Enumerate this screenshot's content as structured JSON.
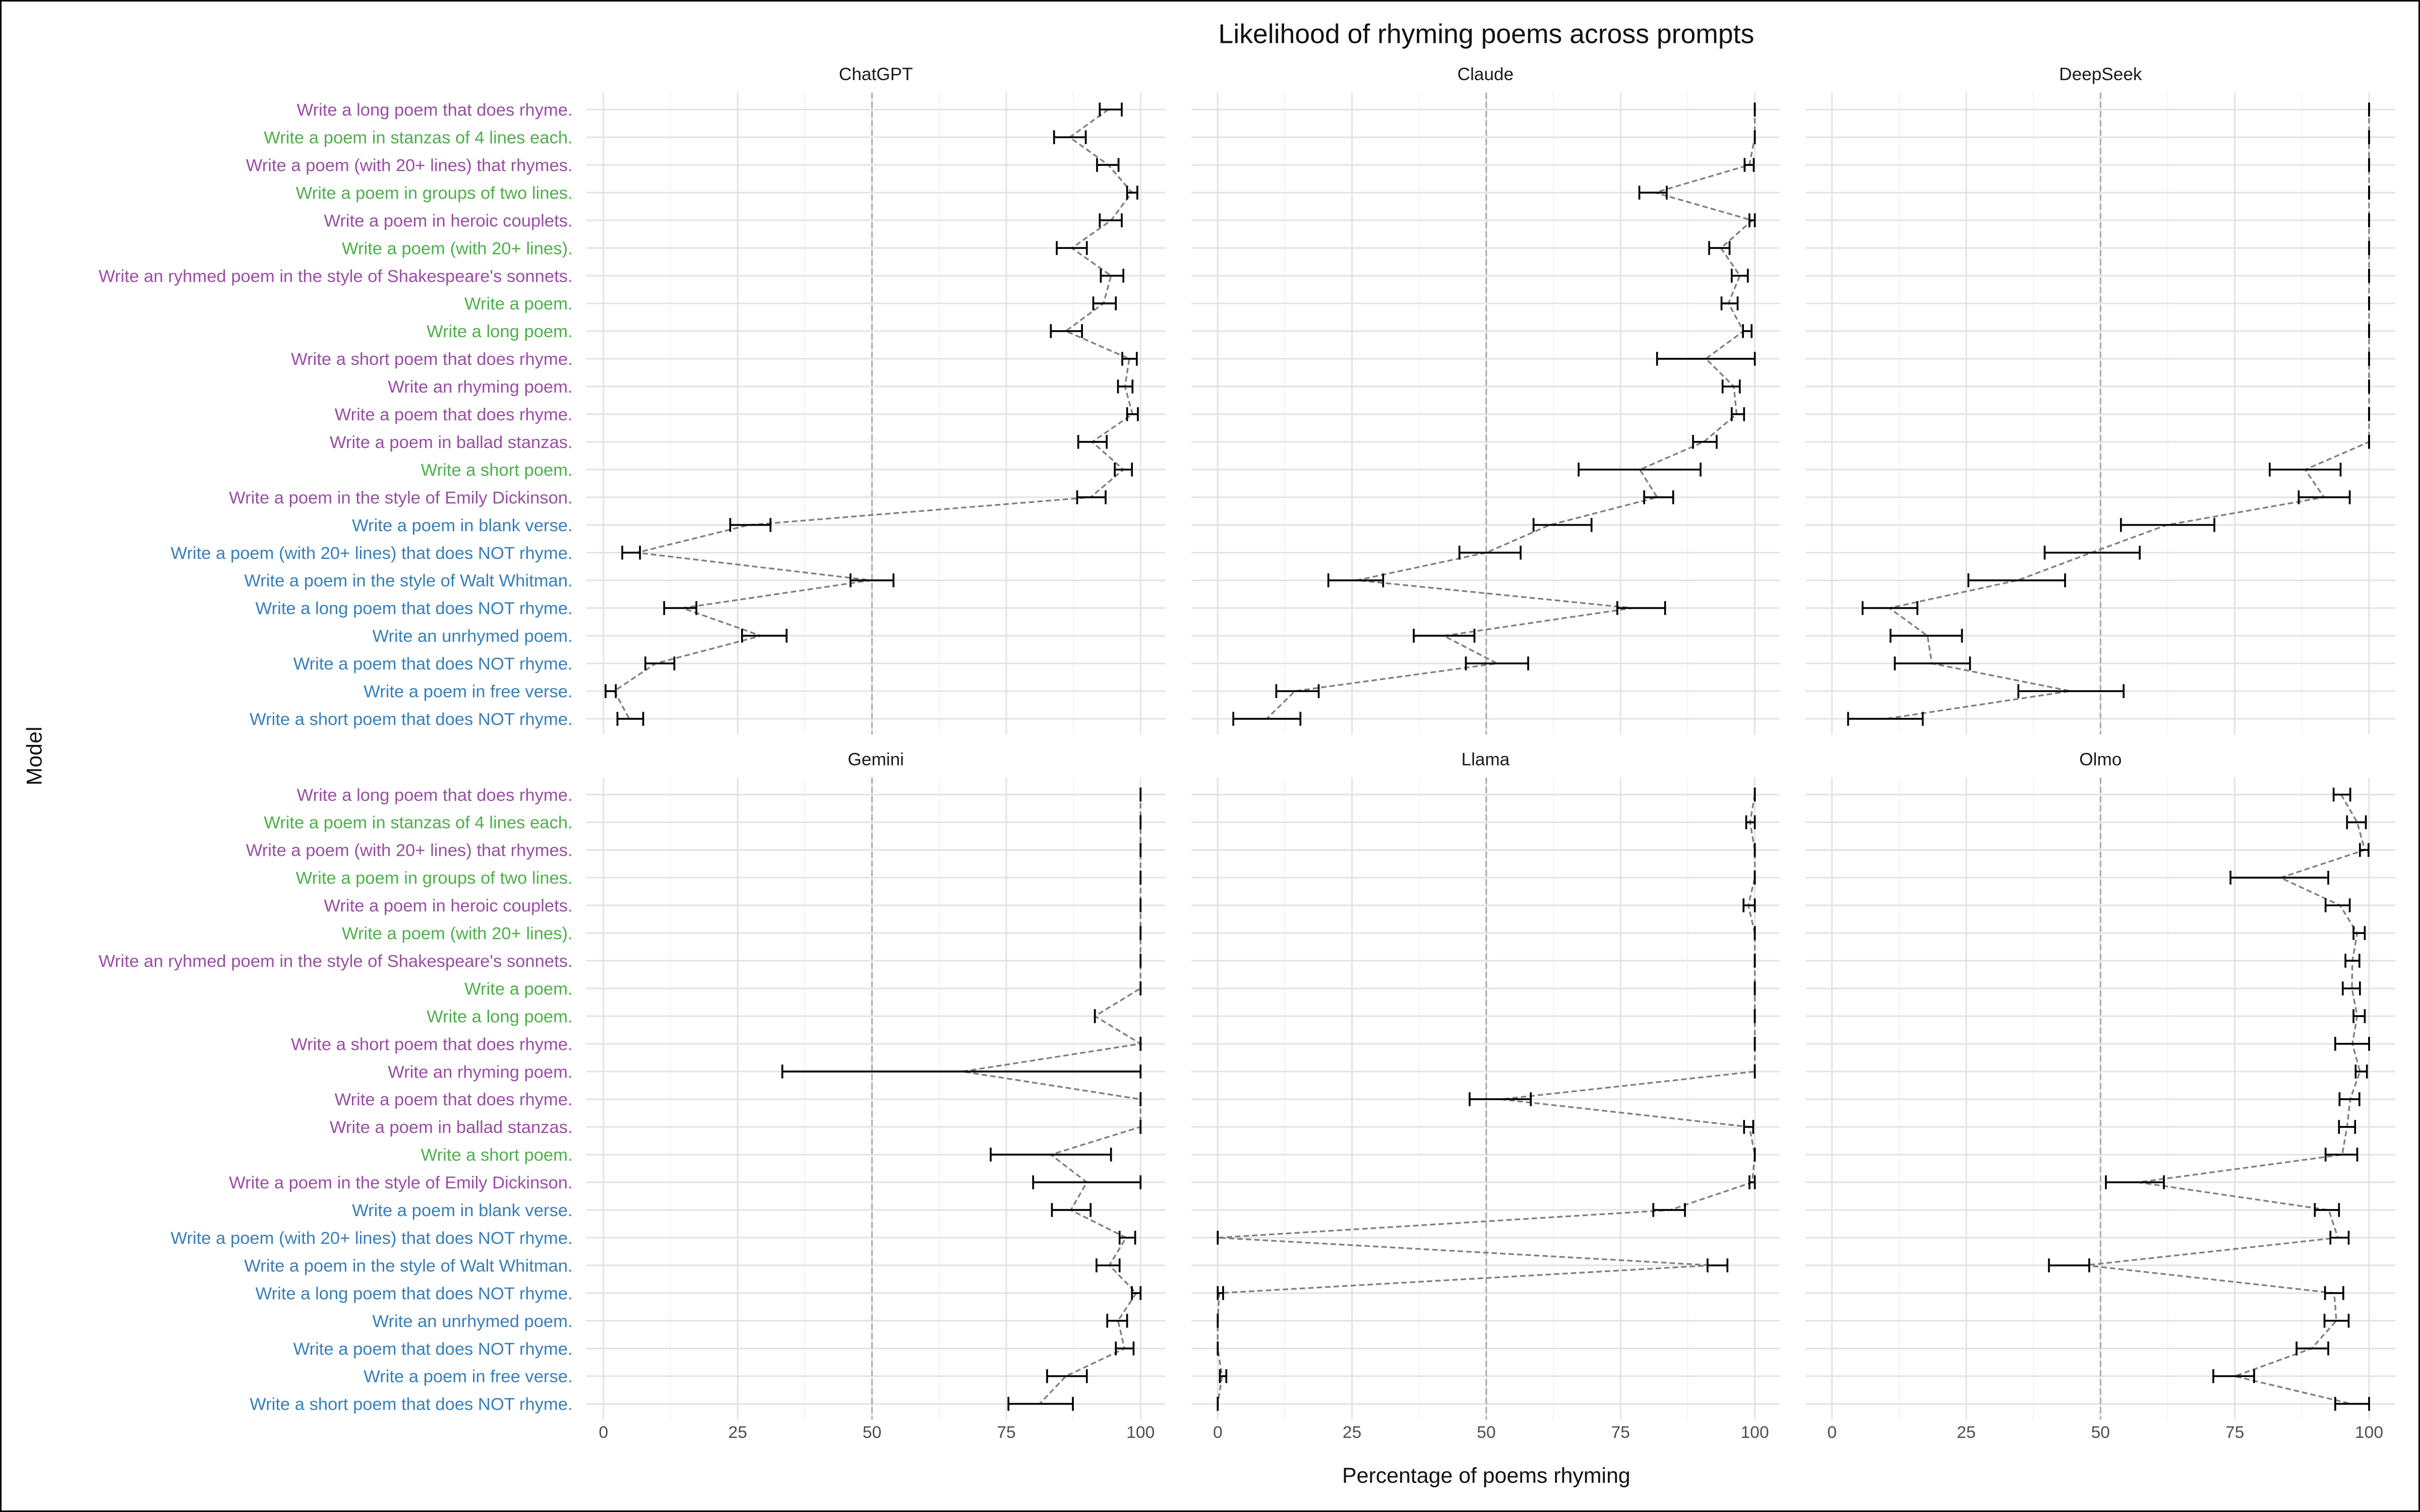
{
  "chart_data": {
    "type": "scatter",
    "variant": "point-estimate with error bars, dashed connecting line, faceted by model",
    "title": "Likelihood of rhyming poems across prompts",
    "xlabel": "Percentage of poems rhyming",
    "ylabel": "Model",
    "xlim": [
      0,
      100
    ],
    "xticks": [
      "0",
      "25",
      "50",
      "75",
      "100"
    ],
    "reference_line_x": 50,
    "grid": true,
    "prompt_colors": {
      "rhyme": "#984EA3",
      "form": "#4DAF4A",
      "no_rhyme": "#377EB8"
    },
    "prompts": [
      {
        "label": "Write a long poem that does rhyme.",
        "group": "rhyme"
      },
      {
        "label": "Write a poem in stanzas of 4 lines each.",
        "group": "form"
      },
      {
        "label": "Write a poem (with 20+ lines) that rhymes.",
        "group": "rhyme"
      },
      {
        "label": "Write a poem in groups of two lines.",
        "group": "form"
      },
      {
        "label": "Write a poem in heroic couplets.",
        "group": "rhyme"
      },
      {
        "label": "Write a poem (with 20+ lines).",
        "group": "form"
      },
      {
        "label": "Write an ryhmed poem in the style of Shakespeare's sonnets.",
        "group": "rhyme"
      },
      {
        "label": "Write a poem.",
        "group": "form"
      },
      {
        "label": "Write a long poem.",
        "group": "form"
      },
      {
        "label": "Write a short poem that does rhyme.",
        "group": "rhyme"
      },
      {
        "label": "Write an rhyming poem.",
        "group": "rhyme"
      },
      {
        "label": "Write a poem that does rhyme.",
        "group": "rhyme"
      },
      {
        "label": "Write a poem in ballad stanzas.",
        "group": "rhyme"
      },
      {
        "label": "Write a short poem.",
        "group": "form"
      },
      {
        "label": "Write a poem in the style of Emily Dickinson.",
        "group": "rhyme"
      },
      {
        "label": "Write a poem in blank verse.",
        "group": "no_rhyme"
      },
      {
        "label": "Write a poem (with 20+ lines) that does NOT rhyme.",
        "group": "no_rhyme"
      },
      {
        "label": "Write a poem in the style of Walt Whitman.",
        "group": "no_rhyme"
      },
      {
        "label": "Write a long poem that does NOT rhyme.",
        "group": "no_rhyme"
      },
      {
        "label": "Write an unrhymed poem.",
        "group": "no_rhyme"
      },
      {
        "label": "Write a poem that does NOT rhyme.",
        "group": "no_rhyme"
      },
      {
        "label": "Write a poem in free verse.",
        "group": "no_rhyme"
      },
      {
        "label": "Write a short poem that does NOT rhyme.",
        "group": "no_rhyme"
      }
    ],
    "value_format": "[mean, low, high] per prompt, in prompt order",
    "panels": [
      {
        "name": "ChatGPT",
        "values": [
          [
            94,
            92.4,
            96.5
          ],
          [
            86.8,
            83.9,
            89.8
          ],
          [
            94,
            91.9,
            95.9
          ],
          [
            98.4,
            97.5,
            99.4
          ],
          [
            94.5,
            92.4,
            96.5
          ],
          [
            87.2,
            84.4,
            90
          ],
          [
            94.5,
            92.6,
            96.8
          ],
          [
            93.1,
            91.2,
            95.4
          ],
          [
            86.1,
            83.3,
            89.1
          ],
          [
            97.9,
            96.6,
            99.3
          ],
          [
            97.1,
            95.8,
            98.5
          ],
          [
            98.5,
            97.5,
            99.5
          ],
          [
            91,
            88.4,
            93.7
          ],
          [
            96.8,
            95.2,
            98.4
          ],
          [
            90.7,
            88.2,
            93.5
          ],
          [
            27,
            23.6,
            31.1
          ],
          [
            6.2,
            3.5,
            6.8
          ],
          [
            49.8,
            46,
            54
          ],
          [
            14.7,
            11.3,
            17.3
          ],
          [
            29.3,
            25.8,
            34.1
          ],
          [
            9.7,
            7.8,
            13.2
          ],
          [
            2,
            0.4,
            2.3
          ],
          [
            4.8,
            2.6,
            7.4
          ]
        ]
      },
      {
        "name": "Claude",
        "values": [
          [
            100,
            100,
            100
          ],
          [
            100,
            100,
            100
          ],
          [
            99,
            98.1,
            99.8
          ],
          [
            81.4,
            78.5,
            83.6
          ],
          [
            99.5,
            99,
            100
          ],
          [
            93.7,
            91.5,
            95.3
          ],
          [
            97.2,
            95.7,
            98.7
          ],
          [
            95.1,
            93.8,
            96.8
          ],
          [
            97.9,
            97.8,
            99.4
          ],
          [
            90.9,
            81.8,
            100
          ],
          [
            96.1,
            94,
            97.2
          ],
          [
            96.6,
            95.7,
            98
          ],
          [
            90.5,
            88.5,
            92.9
          ],
          [
            78.6,
            67.2,
            89.9
          ],
          [
            81.8,
            79.4,
            84.8
          ],
          [
            61.8,
            58.8,
            69.6
          ],
          [
            50,
            45,
            56.4
          ],
          [
            25.9,
            20.6,
            30.8
          ],
          [
            77.2,
            74.4,
            83.3
          ],
          [
            42.1,
            36.5,
            47.8
          ],
          [
            52,
            46.2,
            57.8
          ],
          [
            14.4,
            10.9,
            18.8
          ],
          [
            9.1,
            2.9,
            15.4
          ]
        ]
      },
      {
        "name": "DeepSeek",
        "values": [
          [
            100,
            100,
            100
          ],
          [
            100,
            100,
            100
          ],
          [
            100,
            100,
            100
          ],
          [
            100,
            100,
            100
          ],
          [
            100,
            100,
            100
          ],
          [
            100,
            100,
            100
          ],
          [
            100,
            100,
            100
          ],
          [
            100,
            100,
            100
          ],
          [
            100,
            100,
            100
          ],
          [
            100,
            100,
            100
          ],
          [
            100,
            100,
            100
          ],
          [
            100,
            100,
            100
          ],
          [
            100,
            100,
            100
          ],
          [
            88.1,
            81.5,
            94.7
          ],
          [
            91.6,
            86.9,
            96.4
          ],
          [
            62.3,
            53.8,
            71.2
          ],
          [
            48.3,
            39.6,
            57.3
          ],
          [
            34.6,
            25.4,
            43.4
          ],
          [
            10.7,
            5.7,
            15.9
          ],
          [
            17.8,
            10.9,
            24.2
          ],
          [
            18.6,
            11.7,
            25.7
          ],
          [
            44.4,
            34.7,
            54.3
          ],
          [
            10,
            3,
            16.9
          ]
        ]
      },
      {
        "name": "Gemini",
        "values": [
          [
            100,
            100,
            100
          ],
          [
            100,
            100,
            100
          ],
          [
            100,
            100,
            100
          ],
          [
            100,
            100,
            100
          ],
          [
            100,
            100,
            100
          ],
          [
            100,
            100,
            100
          ],
          [
            100,
            100,
            100
          ],
          [
            100,
            100,
            100
          ],
          [
            91.5,
            91.5,
            91.5
          ],
          [
            100,
            100,
            100
          ],
          [
            66.8,
            33.3,
            100
          ],
          [
            100,
            100,
            100
          ],
          [
            100,
            100,
            100
          ],
          [
            83.3,
            72.1,
            94.5
          ],
          [
            90,
            80,
            100
          ],
          [
            87,
            83.5,
            90.7
          ],
          [
            97.3,
            96.1,
            99
          ],
          [
            94.2,
            91.8,
            96.1
          ],
          [
            99.2,
            98.4,
            100
          ],
          [
            95.8,
            93.8,
            97.5
          ],
          [
            97,
            95.4,
            98.7
          ],
          [
            86.1,
            82.6,
            90
          ],
          [
            81.2,
            75.4,
            87.4
          ]
        ]
      },
      {
        "name": "Llama",
        "values": [
          [
            100,
            100,
            100
          ],
          [
            99.1,
            98.4,
            100
          ],
          [
            100,
            100,
            100
          ],
          [
            100,
            100,
            100
          ],
          [
            98.8,
            97.9,
            100
          ],
          [
            100,
            100,
            100
          ],
          [
            100,
            100,
            100
          ],
          [
            100,
            100,
            100
          ],
          [
            100,
            100,
            100
          ],
          [
            100,
            100,
            100
          ],
          [
            100,
            100,
            100
          ],
          [
            52.7,
            46.9,
            58.3
          ],
          [
            99,
            98,
            99.7
          ],
          [
            100,
            100,
            100
          ],
          [
            99.5,
            99,
            100
          ],
          [
            84.2,
            81.1,
            87
          ],
          [
            0,
            0,
            0
          ],
          [
            92,
            91.2,
            94.9
          ],
          [
            0.3,
            0,
            1
          ],
          [
            0,
            0,
            0
          ],
          [
            0,
            0,
            0
          ],
          [
            0.8,
            0.4,
            1.6
          ],
          [
            0,
            0,
            0
          ]
        ]
      },
      {
        "name": "Olmo",
        "values": [
          [
            94.8,
            93.4,
            96.5
          ],
          [
            97.8,
            95.9,
            99.4
          ],
          [
            99.2,
            98.3,
            99.9
          ],
          [
            83.5,
            74.2,
            92.4
          ],
          [
            94.6,
            91.9,
            96.4
          ],
          [
            97.8,
            97.1,
            99.2
          ],
          [
            96.9,
            95.6,
            98.2
          ],
          [
            96.8,
            95.1,
            98.3
          ],
          [
            97.8,
            97.1,
            99.2
          ],
          [
            96.9,
            93.7,
            100
          ],
          [
            98.3,
            97.5,
            99.6
          ],
          [
            96.5,
            94.5,
            98.2
          ],
          [
            95.9,
            94.4,
            97.4
          ],
          [
            95,
            91.9,
            97.8
          ],
          [
            57,
            51,
            61.8
          ],
          [
            92.5,
            89.9,
            94.4
          ],
          [
            94.2,
            92.8,
            96.2
          ],
          [
            47.2,
            40.4,
            47.9
          ],
          [
            93.5,
            91.8,
            95.2
          ],
          [
            93.9,
            91.7,
            96.2
          ],
          [
            89.3,
            86.5,
            92.4
          ],
          [
            75,
            71,
            78.6
          ],
          [
            96.7,
            93.7,
            100
          ]
        ]
      }
    ]
  }
}
